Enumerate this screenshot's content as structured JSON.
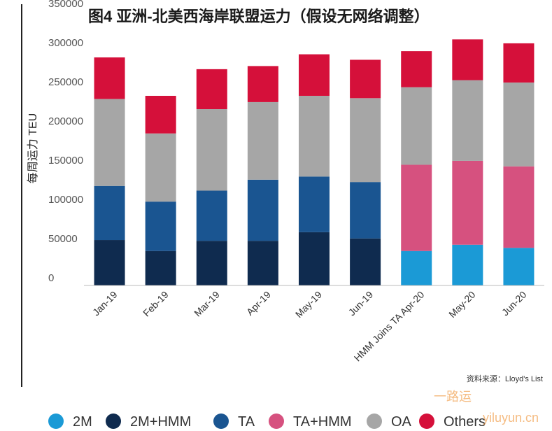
{
  "chart_data": {
    "type": "bar",
    "stacked": true,
    "title": "图4 亚洲-北美西海岸联盟运力（假设无网络调整）",
    "ylabel": "每周运力 TEU",
    "xlabel": "",
    "ylim": [
      0,
      350000
    ],
    "yticks": [
      0,
      50000,
      100000,
      150000,
      200000,
      250000,
      300000,
      350000
    ],
    "categories": [
      "Jan-19",
      "Feb-19",
      "Mar-19",
      "Apr-19",
      "May-19",
      "Jun-19",
      "HMM Joins TA Apr-20",
      "May-20",
      "Jun-20"
    ],
    "series": [
      {
        "name": "2M",
        "color": "#1b9ad6",
        "values": [
          0,
          0,
          0,
          0,
          0,
          0,
          44000,
          52000,
          48000
        ]
      },
      {
        "name": "2M+HMM",
        "color": "#0f2b4f",
        "values": [
          58000,
          44000,
          57000,
          57000,
          68000,
          60000,
          0,
          0,
          0
        ]
      },
      {
        "name": "TA",
        "color": "#1a5591",
        "values": [
          69000,
          63000,
          64000,
          78000,
          71000,
          72000,
          0,
          0,
          0
        ]
      },
      {
        "name": "TA+HMM",
        "color": "#d6517f",
        "values": [
          0,
          0,
          0,
          0,
          0,
          0,
          110000,
          107000,
          104000
        ]
      },
      {
        "name": "OA",
        "color": "#a6a6a6",
        "values": [
          111000,
          87000,
          104000,
          99000,
          103000,
          107000,
          99000,
          103000,
          107000
        ]
      },
      {
        "name": "Others",
        "color": "#d5103a",
        "values": [
          53000,
          48000,
          51000,
          46000,
          53000,
          49000,
          46000,
          52000,
          50000
        ]
      }
    ],
    "legend_position": "bottom",
    "grid": false,
    "source": "资料来源：Lloyd's List"
  },
  "watermark": {
    "line1": "一路运",
    "line2": "yiluyun.cn"
  }
}
